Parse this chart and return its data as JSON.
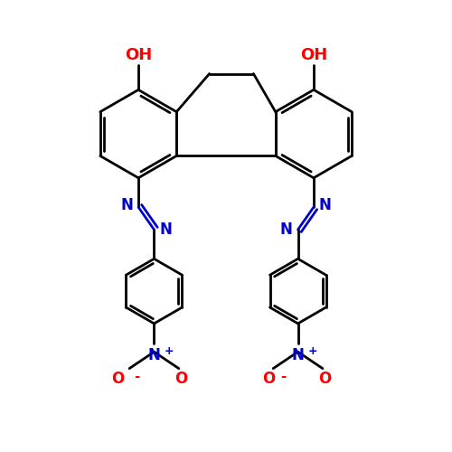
{
  "background_color": "#ffffff",
  "bond_color": "#000000",
  "nitrogen_color": "#0000cc",
  "oxygen_color": "#ff0000",
  "line_width": 2.0,
  "figsize": [
    5.0,
    5.0
  ],
  "dpi": 100,
  "xlim": [
    0,
    10
  ],
  "ylim": [
    0,
    10
  ]
}
